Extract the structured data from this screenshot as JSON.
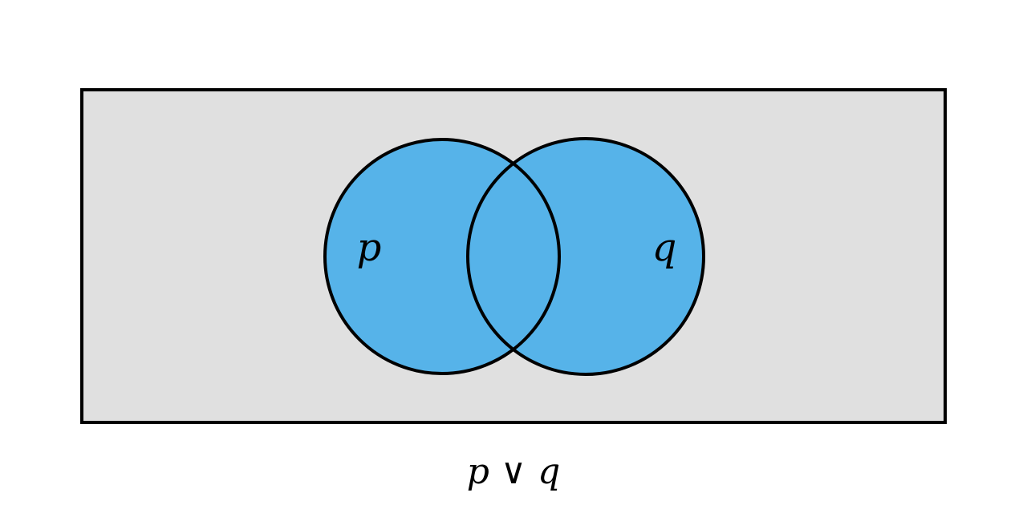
{
  "diagram": {
    "set_a_label": "p",
    "set_b_label": "q",
    "caption": "p ∨ q",
    "shaded_region": "union",
    "colors": {
      "universe_fill": "#e0e0e0",
      "set_fill": "#56b3e9",
      "outline": "#000000",
      "background": "#ffffff"
    }
  }
}
